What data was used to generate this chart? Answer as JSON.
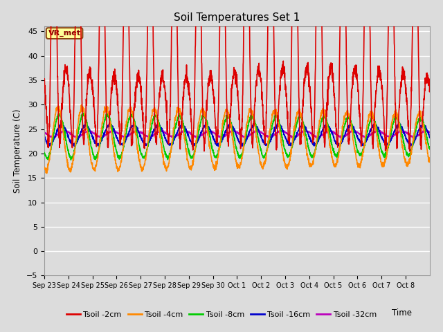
{
  "title": "Soil Temperatures Set 1",
  "xlabel": "Time",
  "ylabel": "Soil Temperature (C)",
  "ylim": [
    -5,
    46
  ],
  "yticks": [
    -5,
    0,
    5,
    10,
    15,
    20,
    25,
    30,
    35,
    40,
    45
  ],
  "plot_bg_color": "#dcdcdc",
  "fig_bg_color": "#dcdcdc",
  "legend_bg": "white",
  "grid_color": "white",
  "annotation_text": "VR_met",
  "annotation_box_color": "#ffff99",
  "annotation_border_color": "#8B4513",
  "series": {
    "Tsoil -2cm": {
      "color": "#dd0000",
      "lw": 1.2
    },
    "Tsoil -4cm": {
      "color": "#ff8800",
      "lw": 1.2
    },
    "Tsoil -8cm": {
      "color": "#00cc00",
      "lw": 1.2
    },
    "Tsoil -16cm": {
      "color": "#0000cc",
      "lw": 1.2
    },
    "Tsoil -32cm": {
      "color": "#bb00bb",
      "lw": 1.2
    }
  },
  "xtick_labels": [
    "Sep 23",
    "Sep 24",
    "Sep 25",
    "Sep 26",
    "Sep 27",
    "Sep 28",
    "Sep 29",
    "Sep 30",
    "Oct 1",
    "Oct 2",
    "Oct 3",
    "Oct 4",
    "Oct 5",
    "Oct 6",
    "Oct 7",
    "Oct 8"
  ],
  "n_days": 16,
  "pts_per_day": 144
}
